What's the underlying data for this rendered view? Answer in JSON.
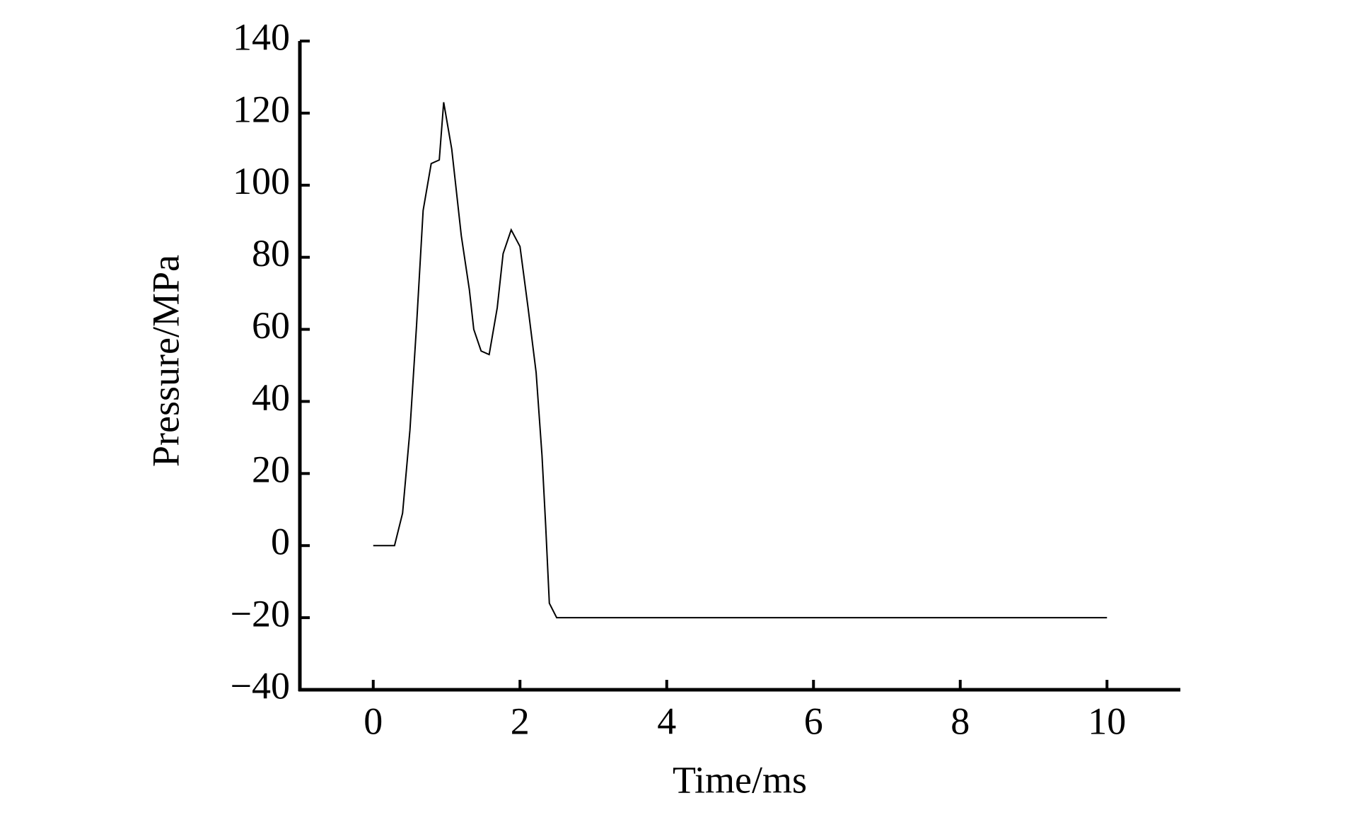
{
  "chart_data": {
    "type": "line",
    "x_label": "Time/ms",
    "y_label": "Pressure/MPa",
    "series": [
      {
        "color": "#000000",
        "x": [
          0,
          0.29,
          0.4,
          0.5,
          0.59,
          0.68,
          0.79,
          0.9,
          0.96,
          1.07,
          1.2,
          1.31,
          1.37,
          1.47,
          1.58,
          1.69,
          1.77,
          1.88,
          2.0,
          2.11,
          2.22,
          2.3,
          2.35,
          2.4,
          2.5,
          10
        ],
        "values": [
          0,
          0,
          9,
          32,
          61,
          93,
          106,
          107,
          123,
          110,
          86,
          71,
          60,
          54,
          53,
          66,
          81,
          87.6,
          83,
          66,
          48,
          25,
          5.6,
          -16,
          -20,
          -20
        ]
      }
    ],
    "xlim": [
      -1,
      11
    ],
    "xticks": [
      0,
      2,
      4,
      6,
      8,
      10
    ],
    "ylim": [
      -40,
      140
    ],
    "yticks": [
      {
        "value": -40,
        "label": "−40"
      },
      {
        "value": -20,
        "label": "−20"
      },
      0,
      20,
      40,
      60,
      80,
      100,
      120,
      140
    ]
  }
}
